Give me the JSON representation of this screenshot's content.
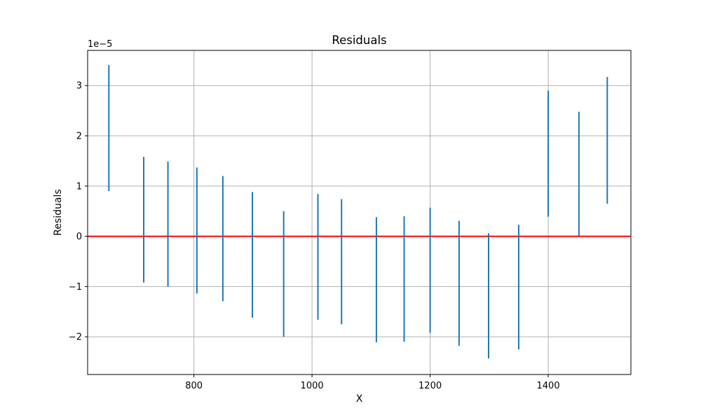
{
  "chart_data": {
    "type": "errorbar",
    "title": "Residuals",
    "xlabel": "X",
    "ylabel": "Residuals",
    "y_scale_label": "1e−5",
    "y_scale_factor": 1e-05,
    "xlim": [
      620,
      1540
    ],
    "ylim": [
      -2.75,
      3.7
    ],
    "xticks": [
      800,
      1000,
      1200,
      1400
    ],
    "xtick_labels": [
      "800",
      "1000",
      "1200",
      "1400"
    ],
    "yticks": [
      -2,
      -1,
      0,
      1,
      2,
      3
    ],
    "ytick_labels": [
      "−2",
      "−1",
      "0",
      "1",
      "2",
      "3"
    ],
    "grid": true,
    "zero_line": {
      "y": 0,
      "color": "#ff0000"
    },
    "bar_color": "#1f77b4",
    "points": [
      {
        "x": 656,
        "low": 0.9,
        "high": 3.41
      },
      {
        "x": 715,
        "low": -0.92,
        "high": 1.58
      },
      {
        "x": 756,
        "low": -1.0,
        "high": 1.49
      },
      {
        "x": 805,
        "low": -1.14,
        "high": 1.37
      },
      {
        "x": 849,
        "low": -1.29,
        "high": 1.2
      },
      {
        "x": 899,
        "low": -1.62,
        "high": 0.88
      },
      {
        "x": 952,
        "low": -2.0,
        "high": 0.5
      },
      {
        "x": 1010,
        "low": -1.66,
        "high": 0.84
      },
      {
        "x": 1050,
        "low": -1.75,
        "high": 0.74
      },
      {
        "x": 1109,
        "low": -2.11,
        "high": 0.38
      },
      {
        "x": 1156,
        "low": -2.1,
        "high": 0.4
      },
      {
        "x": 1200,
        "low": -1.92,
        "high": 0.57
      },
      {
        "x": 1249,
        "low": -2.18,
        "high": 0.31
      },
      {
        "x": 1299,
        "low": -2.43,
        "high": 0.06
      },
      {
        "x": 1350,
        "low": -2.25,
        "high": 0.23
      },
      {
        "x": 1400,
        "low": 0.39,
        "high": 2.9
      },
      {
        "x": 1452,
        "low": 0.01,
        "high": 2.48
      },
      {
        "x": 1500,
        "low": 0.65,
        "high": 3.17
      }
    ]
  }
}
